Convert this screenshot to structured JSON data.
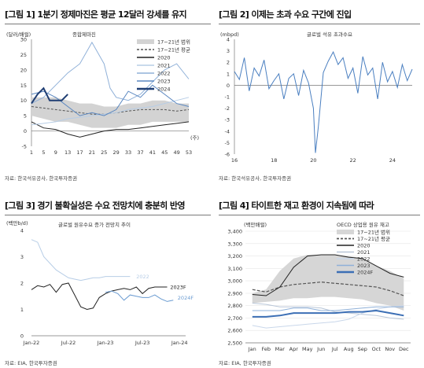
{
  "panels": [
    {
      "title": "[그림 1] 1분기 정제마진은 평균 12달러 강세를 유지",
      "source": "자료: 한국석유공사, 한국투자증권",
      "chart_data": {
        "type": "line",
        "unit_label": "(달러/배럴)",
        "inner_label": "종합제마진",
        "x_unit": "(주)",
        "xlim": [
          1,
          53
        ],
        "ylim": [
          -5,
          30
        ],
        "xticks": [
          1,
          5,
          9,
          13,
          17,
          21,
          25,
          29,
          33,
          37,
          41,
          45,
          49,
          53
        ],
        "yticks": [
          -5,
          0,
          5,
          10,
          15,
          20,
          25,
          30
        ],
        "band": {
          "name": "17~21년 범위",
          "x": [
            1,
            5,
            9,
            13,
            17,
            21,
            25,
            29,
            33,
            37,
            41,
            45,
            49,
            53
          ],
          "low": [
            5,
            4,
            3,
            3,
            2,
            1,
            1,
            1,
            2,
            2,
            3,
            3,
            3,
            3
          ],
          "high": [
            11,
            11,
            11,
            10,
            9,
            9,
            8,
            8,
            9,
            9,
            10,
            10,
            9,
            9
          ]
        },
        "series": [
          {
            "name": "17~21년 평균",
            "color": "#555555",
            "dash": true,
            "width": 1,
            "x": [
              1,
              5,
              9,
              13,
              17,
              21,
              25,
              29,
              33,
              37,
              41,
              45,
              49,
              53
            ],
            "y": [
              8,
              7.5,
              7,
              6.5,
              6,
              5.5,
              5.5,
              6,
              6.5,
              7,
              7,
              7,
              6.5,
              7
            ]
          },
          {
            "name": "2020",
            "color": "#222222",
            "width": 1,
            "x": [
              1,
              5,
              9,
              13,
              17,
              21,
              25,
              29,
              33,
              37,
              41,
              45,
              49,
              53
            ],
            "y": [
              3,
              1,
              0.5,
              -1,
              -2,
              -1,
              0,
              0.5,
              0.5,
              1,
              1.5,
              2,
              2.5,
              3
            ]
          },
          {
            "name": "2021",
            "color": "#b7cde6",
            "width": 1,
            "x": [
              1,
              5,
              9,
              13,
              17,
              21,
              25,
              29,
              33,
              37,
              41,
              45,
              49,
              53
            ],
            "y": [
              2,
              2.5,
              3,
              4,
              4.5,
              5,
              5.5,
              6,
              7,
              7.5,
              8,
              9,
              10,
              11
            ]
          },
          {
            "name": "2022",
            "color": "#8fb0d8",
            "width": 1,
            "x": [
              1,
              5,
              9,
              13,
              17,
              21,
              25,
              27,
              29,
              33,
              37,
              41,
              45,
              49,
              53
            ],
            "y": [
              9,
              11,
              15,
              19,
              22,
              29,
              22,
              14,
              11,
              10,
              12,
              16,
              20,
              22,
              17
            ]
          },
          {
            "name": "2023",
            "color": "#5a87c0",
            "width": 1,
            "x": [
              1,
              5,
              9,
              13,
              17,
              21,
              25,
              29,
              33,
              37,
              41,
              45,
              49,
              53
            ],
            "y": [
              12,
              13,
              11,
              8,
              5,
              6,
              5,
              7,
              13,
              11,
              15,
              12,
              9,
              8
            ]
          },
          {
            "name": "2024",
            "color": "#1f3e73",
            "width": 2,
            "x": [
              1,
              3,
              5,
              7,
              9,
              11,
              13
            ],
            "y": [
              9,
              12,
              14,
              10,
              10,
              10,
              12
            ]
          }
        ]
      }
    },
    {
      "title": "[그림 2] 이제는 초과 수요 구간에 진입",
      "source": "자료: 한국석유공사, 한국투자증권",
      "chart_data": {
        "type": "line",
        "unit_label": "(mbpd)",
        "inner_label": "글로벌 석유 초과수요",
        "xlim": [
          16,
          25
        ],
        "ylim": [
          -6,
          4
        ],
        "xticks": [
          16,
          18,
          20,
          22,
          24
        ],
        "yticks": [
          -6,
          -5,
          -4,
          -3,
          -2,
          -1,
          0,
          1,
          2,
          3,
          4
        ],
        "series": [
          {
            "name": "글로벌 석유 초과수요",
            "color": "#4a7fc0",
            "width": 1,
            "x": [
              16.0,
              16.25,
              16.5,
              16.75,
              17.0,
              17.25,
              17.5,
              17.75,
              18.0,
              18.25,
              18.5,
              18.75,
              19.0,
              19.25,
              19.5,
              19.75,
              20.0,
              20.1,
              20.25,
              20.5,
              20.75,
              21.0,
              21.25,
              21.5,
              21.75,
              22.0,
              22.25,
              22.5,
              22.75,
              23.0,
              23.25,
              23.5,
              23.75,
              24.0,
              24.25,
              24.5,
              24.75,
              25.0
            ],
            "y": [
              1.2,
              0.5,
              2.4,
              -0.5,
              1.5,
              0.8,
              2.2,
              -0.3,
              0.4,
              1.0,
              -1.2,
              0.6,
              1.0,
              -0.9,
              1.3,
              0.2,
              -2.0,
              -5.9,
              -3.6,
              1.1,
              2.1,
              2.9,
              1.8,
              2.4,
              0.6,
              1.5,
              -0.7,
              2.5,
              0.9,
              1.5,
              -1.2,
              2.0,
              0.3,
              1.2,
              -0.2,
              1.8,
              0.4,
              1.4
            ]
          }
        ]
      }
    },
    {
      "title": "[그림 3] 경기 불확실성은 수요 전망치에 충분히 반영",
      "source": "자료: EIA, 한국투자증권",
      "chart_data": {
        "type": "line",
        "unit_label": "(백만b/d)",
        "inner_label": "글로벌 원유수요 증가 전망치 추이",
        "xlim": [
          0,
          25
        ],
        "ylim": [
          0,
          4
        ],
        "xtick_positions": [
          0,
          6,
          12,
          18,
          24
        ],
        "xtick_labels": [
          "Jan-22",
          "Jul-22",
          "Jan-23",
          "Jul-23",
          "Jan-24"
        ],
        "yticks": [
          0,
          1,
          2,
          3,
          4
        ],
        "series": [
          {
            "name": "2022",
            "color": "#b7cde6",
            "width": 1,
            "label_at": [
              17,
              2.25
            ],
            "x": [
              0,
              1,
              2,
              3,
              4,
              5,
              6,
              7,
              8,
              9,
              10,
              11,
              12,
              13,
              14,
              15,
              16
            ],
            "y": [
              3.65,
              3.55,
              3.0,
              2.75,
              2.5,
              2.35,
              2.2,
              2.15,
              2.1,
              2.15,
              2.2,
              2.2,
              2.25,
              2.25,
              2.25,
              2.25,
              2.25
            ]
          },
          {
            "name": "2023F",
            "color": "#222222",
            "width": 1,
            "label_at": [
              22.5,
              1.85
            ],
            "x": [
              0,
              1,
              2,
              3,
              4,
              5,
              6,
              7,
              8,
              9,
              10,
              11,
              12,
              13,
              14,
              15,
              16,
              17,
              18,
              19,
              20,
              21,
              22
            ],
            "y": [
              1.75,
              1.9,
              1.85,
              1.95,
              1.65,
              1.95,
              2.0,
              1.55,
              1.1,
              1.0,
              1.05,
              1.45,
              1.6,
              1.7,
              1.75,
              1.8,
              1.75,
              1.85,
              1.6,
              1.8,
              1.85,
              1.85,
              1.85
            ]
          },
          {
            "name": "2024F",
            "color": "#6a9bd1",
            "width": 1,
            "label_at": [
              23.7,
              1.45
            ],
            "x": [
              12,
              13,
              14,
              15,
              16,
              17,
              18,
              19,
              20,
              21,
              22,
              23
            ],
            "y": [
              1.65,
              1.7,
              1.6,
              1.35,
              1.55,
              1.5,
              1.45,
              1.45,
              1.55,
              1.4,
              1.3,
              1.35
            ]
          }
        ]
      }
    },
    {
      "title": "[그림 4] 타이트한 재고 환경이 지속됨에 따라",
      "source": "자료: EIA, 한국투자증권",
      "chart_data": {
        "type": "line",
        "unit_label": "(백만배럴)",
        "inner_label": "OECD 상업용 원유 재고",
        "categories": [
          "Jan",
          "Feb",
          "Mar",
          "Apr",
          "May",
          "Jun",
          "Jul",
          "Aug",
          "Sep",
          "Oct",
          "Nov",
          "Dec"
        ],
        "ylim": [
          2500,
          3400
        ],
        "yticks": [
          2500,
          2600,
          2700,
          2800,
          2900,
          3000,
          3100,
          3200,
          3300,
          3400
        ],
        "band": {
          "name": "17~21년 범위",
          "low": [
            2820,
            2830,
            2840,
            2860,
            2860,
            2870,
            2870,
            2860,
            2850,
            2820,
            2800,
            2760
          ],
          "high": [
            2900,
            2930,
            3080,
            3180,
            3210,
            3210,
            3210,
            3200,
            3180,
            3120,
            3080,
            3020
          ]
        },
        "series": [
          {
            "name": "17~21년 평균",
            "color": "#555555",
            "dash": true,
            "width": 1.2,
            "values": [
              2930,
              2910,
              2950,
              2970,
              2980,
              2990,
              2980,
              2970,
              2960,
              2950,
              2920,
              2880
            ]
          },
          {
            "name": "2020",
            "color": "#222222",
            "width": 1,
            "values": [
              2890,
              2880,
              2950,
              3110,
              3200,
              3210,
              3210,
              3190,
              3180,
              3120,
              3060,
              3030
            ]
          },
          {
            "name": "2021",
            "color": "#b8c6d8",
            "width": 1,
            "values": [
              2820,
              2810,
              2790,
              2790,
              2790,
              2780,
              2750,
              2740,
              2730,
              2720,
              2700,
              2690
            ]
          },
          {
            "name": "2022",
            "color": "#c9d7ea",
            "width": 1,
            "values": [
              2640,
              2620,
              2630,
              2640,
              2650,
              2660,
              2670,
              2690,
              2740,
              2770,
              2790,
              2800
            ]
          },
          {
            "name": "2023",
            "color": "#8fb0d8",
            "width": 1,
            "values": [
              2760,
              2760,
              2760,
              2780,
              2780,
              2760,
              2760,
              2770,
              2780,
              2790,
              2790,
              2790
            ]
          },
          {
            "name": "2024F",
            "color": "#3c6fb5",
            "width": 2,
            "values": [
              2710,
              2710,
              2720,
              2740,
              2740,
              2740,
              2740,
              2750,
              2750,
              2760,
              2740,
              2720
            ]
          }
        ]
      }
    }
  ]
}
